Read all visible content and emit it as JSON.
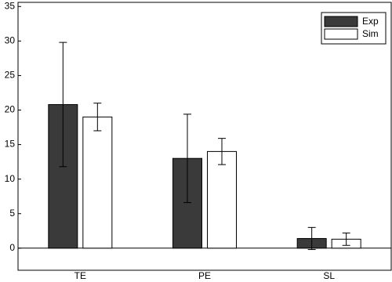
{
  "chart_data": {
    "type": "bar",
    "categories": [
      "TE",
      "PE",
      "SL"
    ],
    "series": [
      {
        "name": "Exp",
        "color": "#3a3a3a",
        "values": [
          20.8,
          13,
          1.4
        ],
        "errors": [
          9,
          6.4,
          1.6
        ]
      },
      {
        "name": "Sim",
        "color": "#ffffff",
        "values": [
          19,
          14,
          1.3
        ],
        "errors": [
          2,
          1.9,
          0.9
        ]
      }
    ],
    "ylim": [
      -3.2,
      35.6
    ],
    "yticks": [
      0,
      5,
      10,
      15,
      20,
      25,
      30,
      35
    ],
    "grid": false,
    "legend": "upper right"
  }
}
